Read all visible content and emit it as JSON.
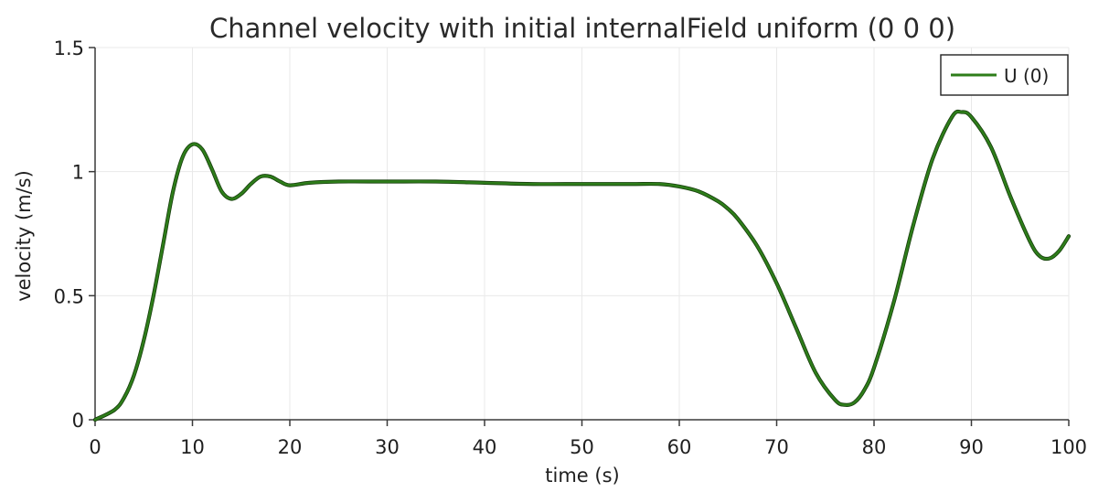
{
  "chart_data": {
    "type": "line",
    "title": "Channel velocity with initial internalField uniform (0 0 0)",
    "xlabel": "time (s)",
    "ylabel": "velocity (m/s)",
    "xlim": [
      0,
      100
    ],
    "ylim": [
      0,
      1.5
    ],
    "x_ticks": [
      "0",
      "10",
      "20",
      "30",
      "40",
      "50",
      "60",
      "70",
      "80",
      "90",
      "100"
    ],
    "y_ticks": [
      "0",
      "0.5",
      "1",
      "1.5"
    ],
    "grid": true,
    "legend": {
      "position": "top-right"
    },
    "series": [
      {
        "name": "U (0)",
        "color": "#2e7d1a",
        "x": [
          0,
          2,
          3,
          4,
          5,
          6,
          7,
          8,
          9,
          10,
          11,
          12,
          13,
          14,
          15,
          16,
          17,
          18,
          19,
          20,
          22,
          25,
          30,
          35,
          40,
          45,
          50,
          55,
          58,
          60,
          62,
          64,
          65,
          66,
          68,
          70,
          72,
          74,
          76,
          77,
          78,
          79,
          80,
          82,
          84,
          86,
          88,
          89,
          90,
          92,
          94,
          96,
          97,
          98,
          99,
          100
        ],
        "values": [
          0,
          0.04,
          0.09,
          0.18,
          0.32,
          0.5,
          0.71,
          0.92,
          1.06,
          1.11,
          1.09,
          1.01,
          0.92,
          0.89,
          0.91,
          0.95,
          0.98,
          0.98,
          0.96,
          0.945,
          0.955,
          0.96,
          0.96,
          0.96,
          0.955,
          0.95,
          0.95,
          0.95,
          0.95,
          0.94,
          0.92,
          0.88,
          0.85,
          0.81,
          0.7,
          0.55,
          0.37,
          0.19,
          0.08,
          0.06,
          0.07,
          0.12,
          0.21,
          0.47,
          0.78,
          1.05,
          1.22,
          1.24,
          1.22,
          1.1,
          0.9,
          0.72,
          0.66,
          0.65,
          0.68,
          0.74
        ]
      }
    ]
  }
}
